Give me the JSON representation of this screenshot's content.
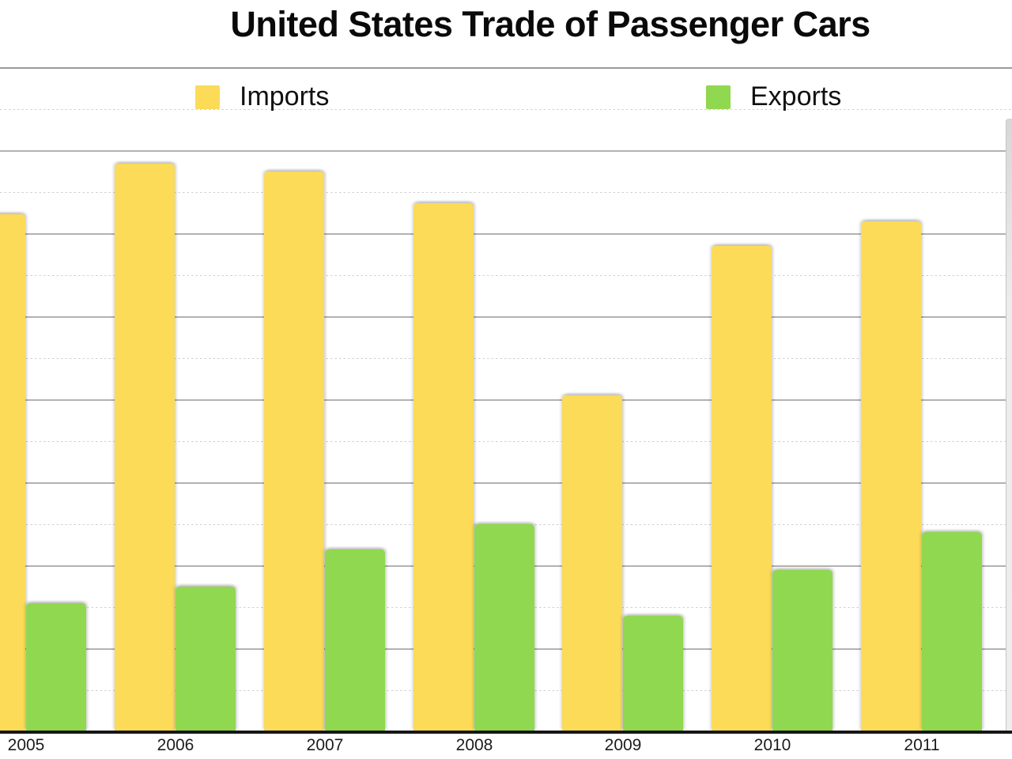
{
  "chart_data": {
    "type": "bar",
    "title": "United States Trade of Passenger Cars",
    "categories": [
      "2005",
      "2006",
      "2007",
      "2008",
      "2009",
      "2010",
      "2011"
    ],
    "series": [
      {
        "name": "Imports",
        "color": "#FBDB58",
        "values": [
          6.23,
          6.84,
          6.74,
          6.36,
          4.05,
          5.85,
          6.14
        ]
      },
      {
        "name": "Exports",
        "color": "#90D84F",
        "values": [
          1.54,
          1.74,
          2.19,
          2.5,
          1.39,
          1.94,
          2.4
        ]
      }
    ],
    "xlabel": "",
    "ylabel": "",
    "ylim": [
      0,
      8
    ],
    "y_axis_numeric_labels_visible": false,
    "units_note": "values expressed in major-gridline units; chart shows no numeric y-axis labels",
    "grid": {
      "major_solid_lines": 8,
      "minor_dashed_lines": 8
    },
    "legend_position": "top",
    "first_bar_clipped_at_left_edge": true,
    "partial_bar_clipped_at_right_edge": true
  }
}
